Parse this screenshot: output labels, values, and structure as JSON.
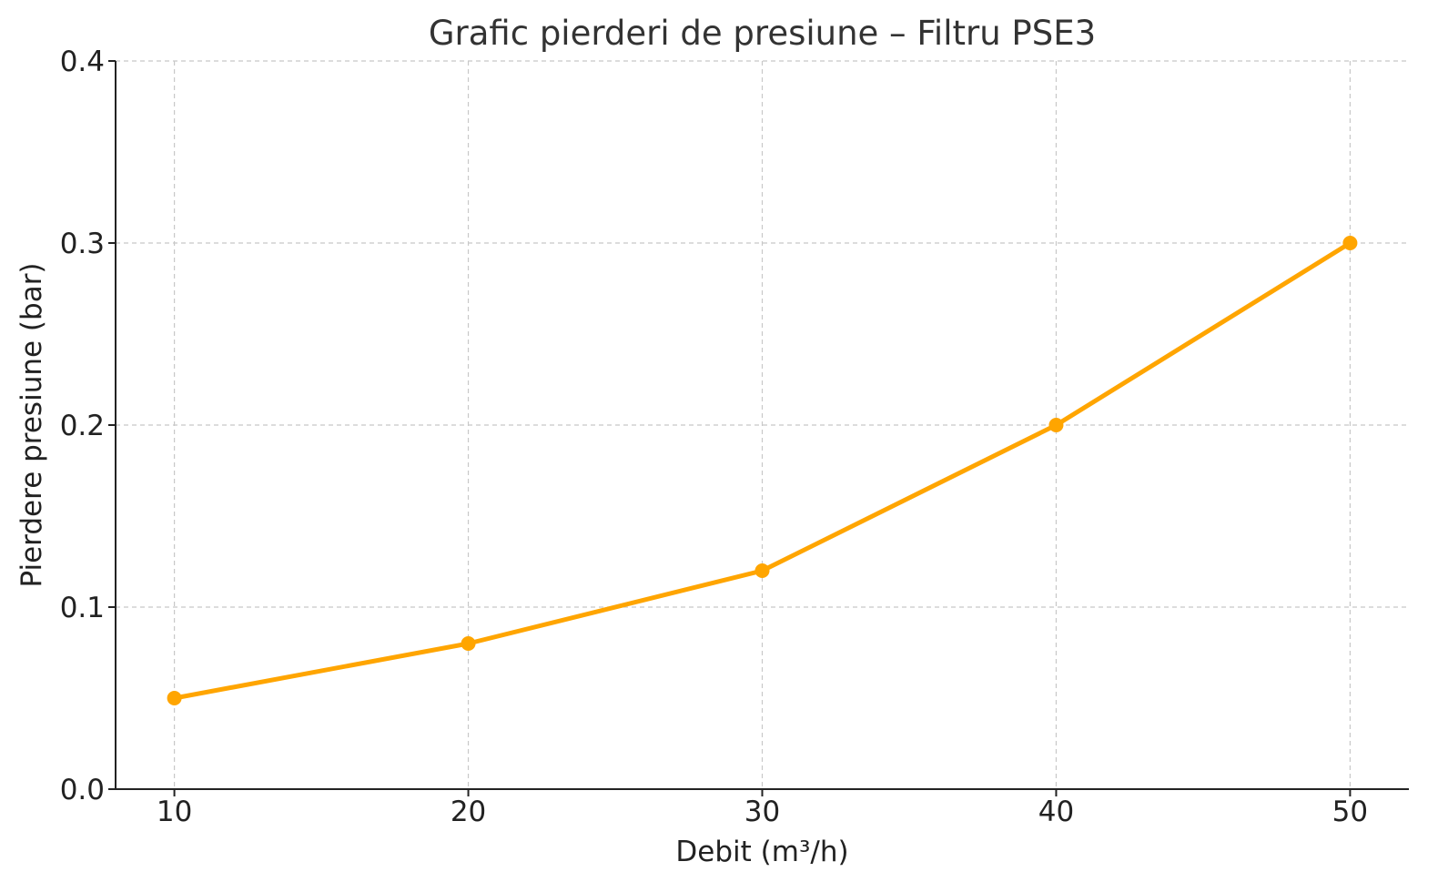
{
  "chart_data": {
    "type": "line",
    "title": "Grafic pierderi de presiune – Filtru PSE3",
    "xlabel": "Debit (m³/h)",
    "ylabel": "Pierdere presiune (bar)",
    "x": [
      10,
      20,
      30,
      40,
      50
    ],
    "series": [
      {
        "values": [
          0.05,
          0.08,
          0.12,
          0.2,
          0.3
        ],
        "color": "#FFA500",
        "marker": "circle"
      }
    ],
    "xlim": [
      8,
      52
    ],
    "ylim": [
      0.0,
      0.4
    ],
    "xticks": [
      10,
      20,
      30,
      40,
      50
    ],
    "xtick_labels": [
      "10",
      "20",
      "30",
      "40",
      "50"
    ],
    "yticks": [
      0.0,
      0.1,
      0.2,
      0.3,
      0.4
    ],
    "ytick_labels": [
      "0.0",
      "0.1",
      "0.2",
      "0.3",
      "0.4"
    ],
    "grid": true,
    "legend": "none"
  }
}
